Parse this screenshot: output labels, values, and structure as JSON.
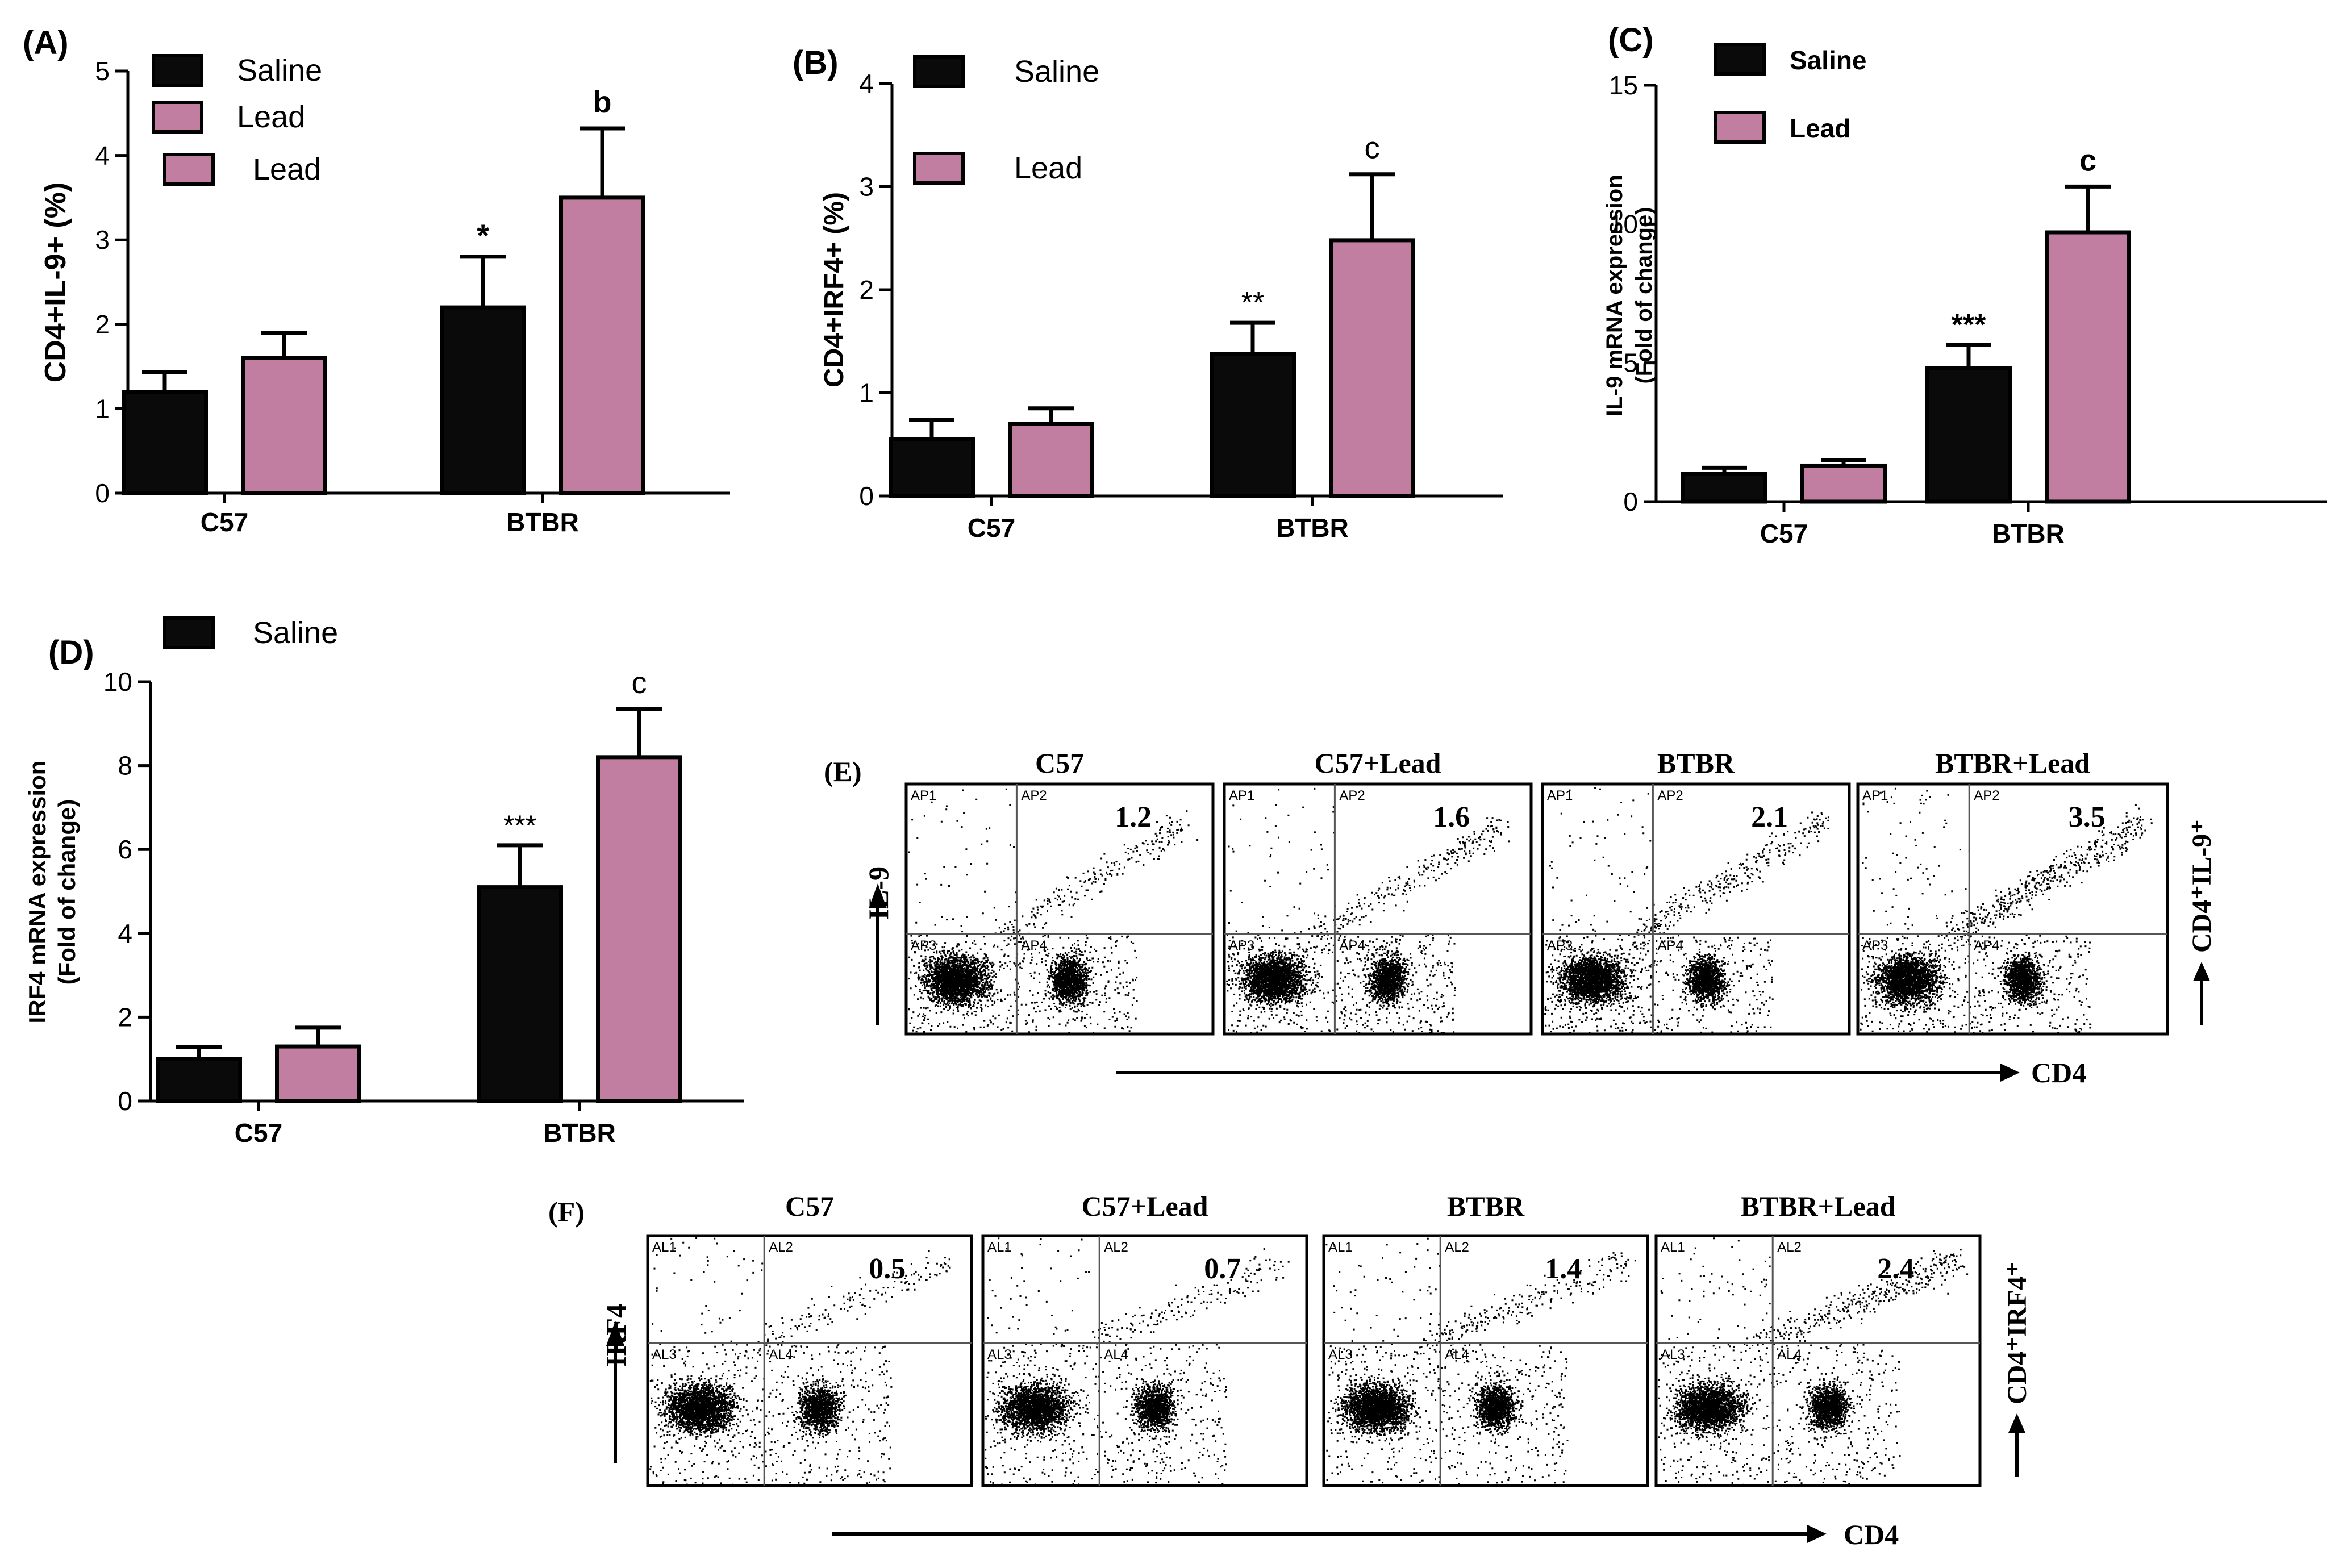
{
  "colors": {
    "saline": "#0a0a0a",
    "lead": "#c27ea0",
    "axis": "#000000",
    "dot": "#000000"
  },
  "legend": {
    "saline": "Saline",
    "lead": "Lead"
  },
  "chart_data": [
    {
      "id": "A",
      "type": "bar",
      "panel_label": "(A)",
      "categories": [
        "C57",
        "BTBR"
      ],
      "ylabel": "CD4+IL-9+ (%)",
      "ylim": [
        0,
        5
      ],
      "yticks": [
        "0",
        "1",
        "2",
        "3",
        "4",
        "5"
      ],
      "series": [
        {
          "name": "Saline",
          "values": [
            1.2,
            2.2
          ],
          "errors": [
            0.23,
            0.6
          ]
        },
        {
          "name": "Lead",
          "values": [
            1.6,
            3.5
          ],
          "errors": [
            0.3,
            0.82
          ]
        }
      ],
      "annotations": [
        {
          "series": 0,
          "category": 1,
          "text": "*"
        },
        {
          "series": 1,
          "category": 1,
          "text": "b"
        }
      ]
    },
    {
      "id": "B",
      "type": "bar",
      "panel_label": "(B)",
      "categories": [
        "C57",
        "BTBR"
      ],
      "ylabel": "CD4+IRF4+ (%)",
      "ylim": [
        0,
        4
      ],
      "yticks": [
        "0",
        "1",
        "2",
        "3",
        "4"
      ],
      "series": [
        {
          "name": "Saline",
          "values": [
            0.55,
            1.38
          ],
          "errors": [
            0.19,
            0.3
          ]
        },
        {
          "name": "Lead",
          "values": [
            0.7,
            2.48
          ],
          "errors": [
            0.15,
            0.64
          ]
        }
      ],
      "annotations": [
        {
          "series": 0,
          "category": 1,
          "text": "**"
        },
        {
          "series": 1,
          "category": 1,
          "text": "c"
        }
      ]
    },
    {
      "id": "C",
      "type": "bar",
      "panel_label": "(C)",
      "categories": [
        "C57",
        "BTBR"
      ],
      "ylabel_lines": [
        "IL-9 mRNA expression",
        "(Fold of change)"
      ],
      "ylim": [
        0,
        15
      ],
      "yticks": [
        "0",
        "5",
        "10",
        "15"
      ],
      "series": [
        {
          "name": "Saline",
          "values": [
            1.0,
            4.8
          ],
          "errors": [
            0.22,
            0.85
          ]
        },
        {
          "name": "Lead",
          "values": [
            1.3,
            9.7
          ],
          "errors": [
            0.2,
            1.65
          ]
        }
      ],
      "annotations": [
        {
          "series": 0,
          "category": 1,
          "text": "***"
        },
        {
          "series": 1,
          "category": 1,
          "text": "c"
        }
      ]
    },
    {
      "id": "D",
      "type": "bar",
      "panel_label": "(D)",
      "categories": [
        "C57",
        "BTBR"
      ],
      "ylabel_lines": [
        "IRF4 mRNA expression",
        "(Fold of change)"
      ],
      "ylim": [
        0,
        10
      ],
      "yticks": [
        "0",
        "2",
        "4",
        "6",
        "8",
        "10"
      ],
      "series": [
        {
          "name": "Saline",
          "values": [
            1.0,
            5.1
          ],
          "errors": [
            0.28,
            1.0
          ]
        },
        {
          "name": "Lead",
          "values": [
            1.3,
            8.2
          ],
          "errors": [
            0.45,
            1.15
          ]
        }
      ],
      "annotations": [
        {
          "series": 0,
          "category": 1,
          "text": "***"
        },
        {
          "series": 1,
          "category": 1,
          "text": "c"
        }
      ]
    }
  ],
  "flow_panels": [
    {
      "id": "E",
      "label": "(E)",
      "y_marker": "IL-9",
      "x_marker": "CD4",
      "side_label": "CD4⁺IL-9⁺",
      "gate_labels": [
        "AP1",
        "AP2",
        "AP3",
        "AP4"
      ],
      "plots": [
        {
          "title": "C57",
          "value": "1.2"
        },
        {
          "title": "C57+Lead",
          "value": "1.6"
        },
        {
          "title": "BTBR",
          "value": "2.1"
        },
        {
          "title": "BTBR+Lead",
          "value": "3.5"
        }
      ]
    },
    {
      "id": "F",
      "label": "(F)",
      "y_marker": "IRF4",
      "x_marker": "CD4",
      "side_label": "CD4⁺IRF4⁺",
      "gate_labels": [
        "AL1",
        "AL2",
        "AL3",
        "AL4"
      ],
      "plots": [
        {
          "title": "C57",
          "value": "0.5"
        },
        {
          "title": "C57+Lead",
          "value": "0.7"
        },
        {
          "title": "BTBR",
          "value": "1.4"
        },
        {
          "title": "BTBR+Lead",
          "value": "2.4"
        }
      ]
    }
  ]
}
